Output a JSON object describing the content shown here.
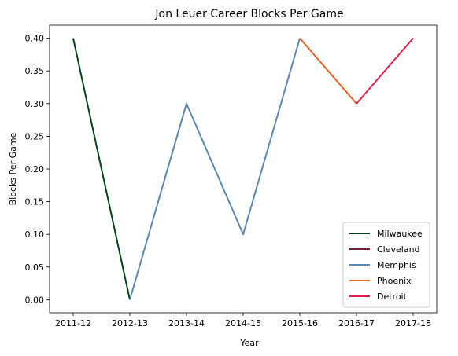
{
  "chart_data": {
    "type": "line",
    "title": "Jon Leuer Career Blocks Per Game",
    "xlabel": "Year",
    "ylabel": "Blocks Per Game",
    "categories": [
      "2011-12",
      "2012-13",
      "2013-14",
      "2014-15",
      "2015-16",
      "2016-17",
      "2017-18"
    ],
    "ylim": [
      -0.02,
      0.42
    ],
    "yticks": [
      "0.00",
      "0.05",
      "0.10",
      "0.15",
      "0.20",
      "0.25",
      "0.30",
      "0.35",
      "0.40"
    ],
    "grid": false,
    "legend_position": "bottom-right",
    "series": [
      {
        "name": "Milwaukee",
        "color": "#00471b",
        "x": [
          "2011-12",
          "2012-13"
        ],
        "values": [
          0.4,
          0.0
        ]
      },
      {
        "name": "Cleveland",
        "color": "#6f263d",
        "x": [
          "2012-13"
        ],
        "values": [
          0.0
        ]
      },
      {
        "name": "Memphis",
        "color": "#5d88b5",
        "x": [
          "2012-13",
          "2013-14",
          "2014-15",
          "2015-16"
        ],
        "values": [
          0.0,
          0.3,
          0.1,
          0.4
        ]
      },
      {
        "name": "Phoenix",
        "color": "#e56020",
        "x": [
          "2015-16",
          "2016-17"
        ],
        "values": [
          0.4,
          0.3
        ]
      },
      {
        "name": "Detroit",
        "color": "#e11f4a",
        "x": [
          "2016-17",
          "2017-18"
        ],
        "values": [
          0.3,
          0.4
        ]
      }
    ]
  }
}
